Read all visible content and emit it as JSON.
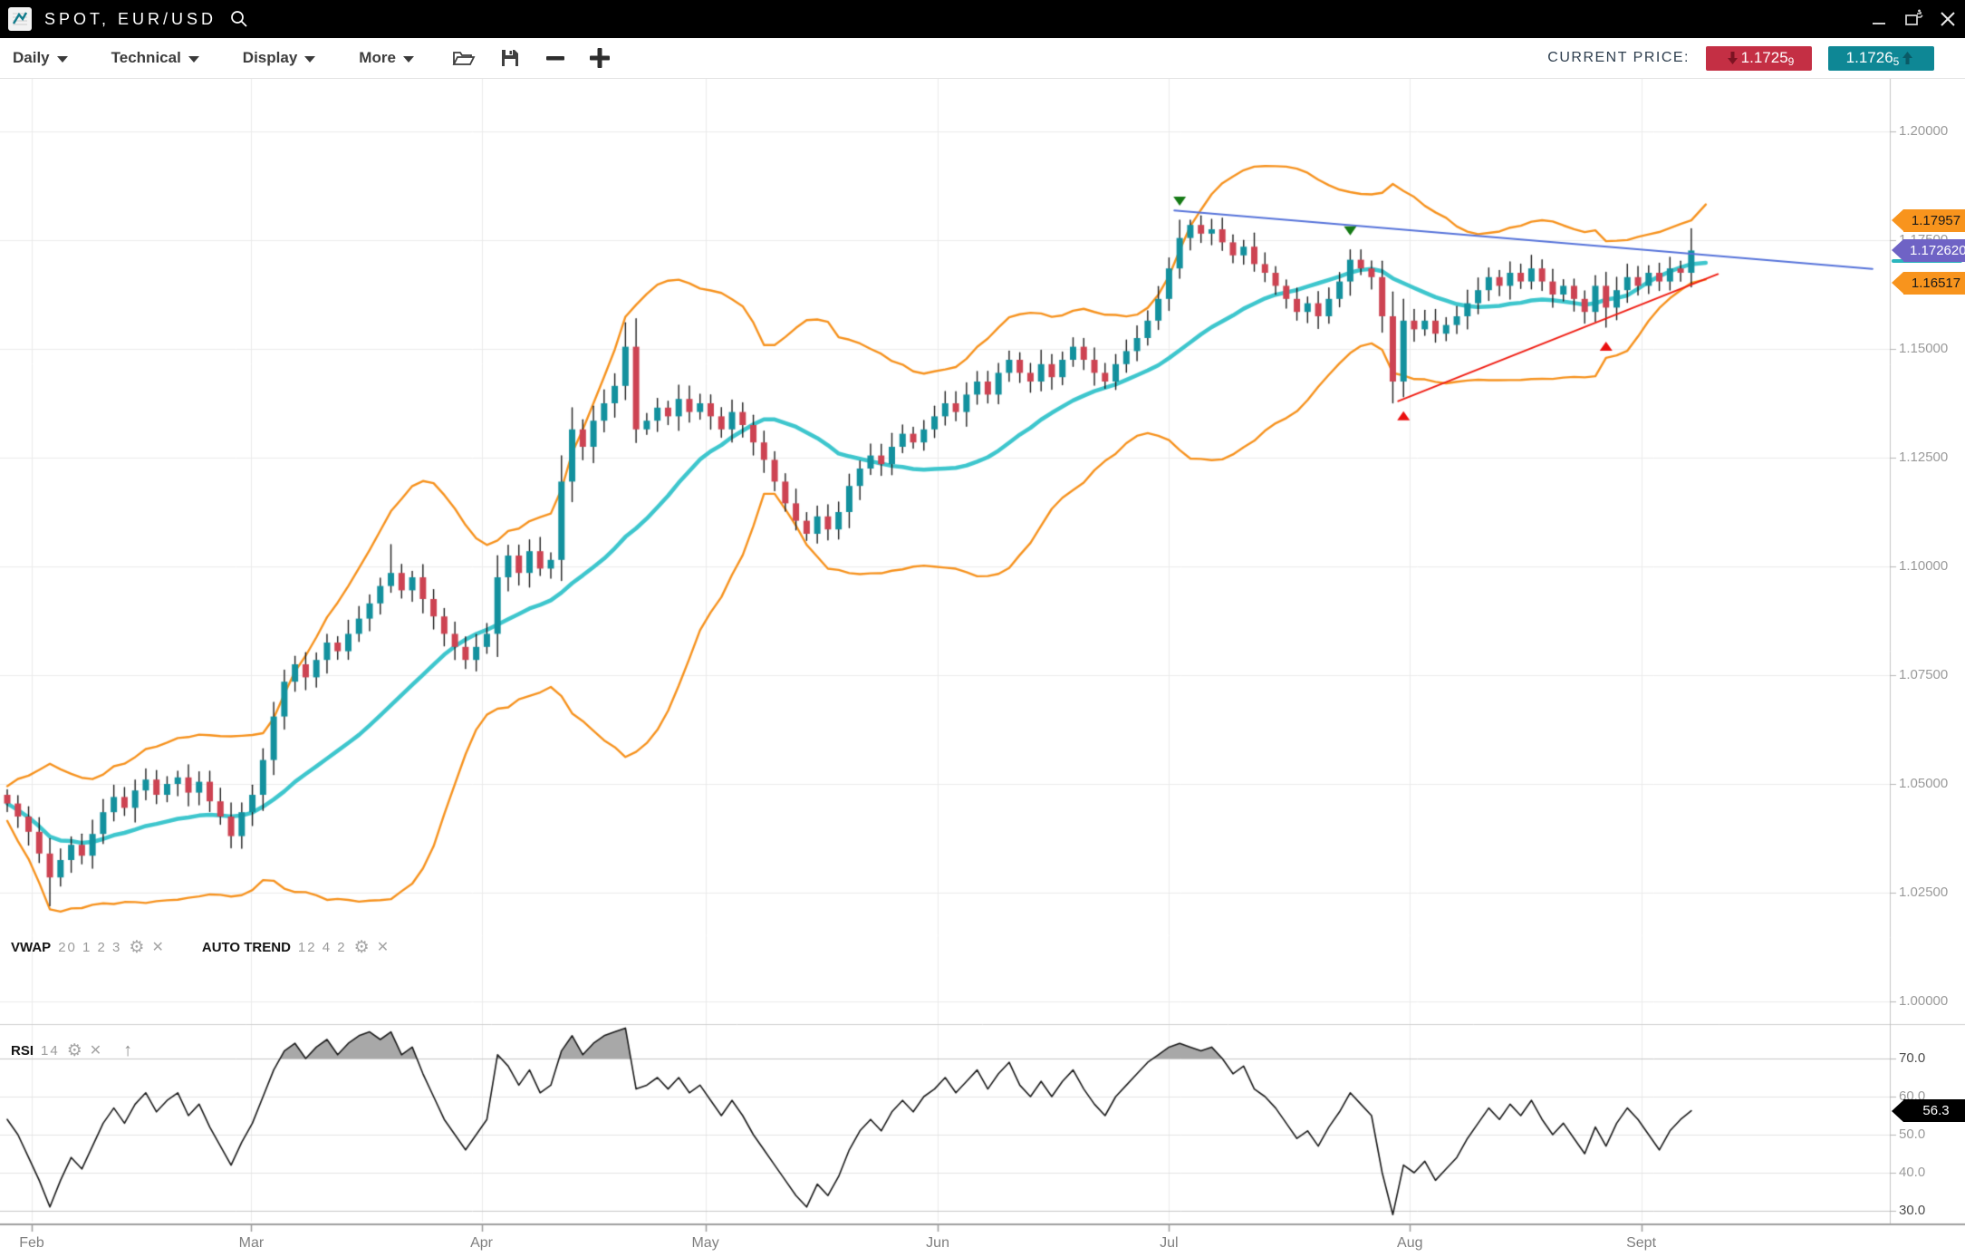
{
  "window": {
    "title": "SPOT, EUR/USD"
  },
  "toolbar": {
    "dropdowns": [
      "Daily",
      "Technical",
      "Display",
      "More"
    ],
    "current_price_label": "CURRENT PRICE:",
    "bid": {
      "main": "1.1725",
      "sub": "9",
      "color": "#c42f44"
    },
    "ask": {
      "main": "1.1726",
      "sub": "5",
      "color": "#0e8795"
    }
  },
  "price_axis": {
    "ticks": [
      {
        "label": "1.20000",
        "price": 1.2
      },
      {
        "label": "1.17500",
        "price": 1.175
      },
      {
        "label": "1.15000",
        "price": 1.15
      },
      {
        "label": "1.12500",
        "price": 1.125
      },
      {
        "label": "1.10000",
        "price": 1.1
      },
      {
        "label": "1.07500",
        "price": 1.075
      },
      {
        "label": "1.05000",
        "price": 1.05
      },
      {
        "label": "1.02500",
        "price": 1.025
      },
      {
        "label": "1.00000",
        "price": 1.0
      }
    ]
  },
  "tags": {
    "upper_band": {
      "text": "1.17957",
      "price": 1.17957,
      "bg": "#f8941d",
      "fg": "#1a1a1a"
    },
    "last_price": {
      "text": "1.172620",
      "price": 1.17262,
      "bg": "#6f63c5",
      "fg": "#ffffff"
    },
    "lower_band": {
      "text": "1.16517",
      "price": 1.16517,
      "bg": "#f8941d",
      "fg": "#1a1a1a"
    },
    "rsi_value": {
      "text": "56.3",
      "value": 56.3,
      "bg": "#000000",
      "fg": "#ffffff"
    }
  },
  "indicators": {
    "vwap": {
      "name": "VWAP",
      "params": "20 1 2 3"
    },
    "auto_trend": {
      "name": "AUTO TREND",
      "params": "12 4 2"
    },
    "rsi": {
      "name": "RSI",
      "params": "14"
    }
  },
  "rsi_axis": {
    "ticks": [
      {
        "label": "70.0",
        "value": 70,
        "strong": true
      },
      {
        "label": "60.0",
        "value": 60,
        "strong": false
      },
      {
        "label": "50.0",
        "value": 50,
        "strong": false
      },
      {
        "label": "40.0",
        "value": 40,
        "strong": false
      },
      {
        "label": "30.0",
        "value": 30,
        "strong": true
      }
    ]
  },
  "chart_data": {
    "type": "candlestick",
    "symbol": "SPOT, EUR/USD",
    "timeframe": "Daily",
    "ylim": [
      1.0,
      1.2
    ],
    "months": [
      {
        "label": "Feb",
        "day": 2.3
      },
      {
        "label": "Mar",
        "day": 22.9
      },
      {
        "label": "Apr",
        "day": 44.5
      },
      {
        "label": "May",
        "day": 65.5
      },
      {
        "label": "Jun",
        "day": 87.3
      },
      {
        "label": "Jul",
        "day": 109.0
      },
      {
        "label": "Aug",
        "day": 131.6
      },
      {
        "label": "Sept",
        "day": 153.3
      }
    ],
    "closes": [
      1.0455,
      1.0425,
      1.039,
      1.034,
      1.0285,
      1.0325,
      1.036,
      1.0335,
      1.0385,
      1.0435,
      1.047,
      1.0445,
      1.0485,
      1.051,
      1.0475,
      1.05,
      1.0515,
      1.048,
      1.0505,
      1.046,
      1.0425,
      1.038,
      1.0435,
      1.0475,
      1.0555,
      1.0655,
      1.0735,
      1.0775,
      1.0745,
      1.0785,
      1.0825,
      1.0805,
      1.0845,
      1.088,
      1.0915,
      1.0955,
      1.0985,
      1.0945,
      1.0975,
      1.0925,
      1.0885,
      1.0845,
      1.0815,
      1.0785,
      1.0815,
      1.0845,
      1.0975,
      1.1025,
      1.0985,
      1.1035,
      1.0995,
      1.1015,
      1.1195,
      1.1315,
      1.1275,
      1.1335,
      1.1375,
      1.1415,
      1.1505,
      1.1315,
      1.1335,
      1.1365,
      1.1345,
      1.1385,
      1.1355,
      1.1375,
      1.1345,
      1.1315,
      1.1355,
      1.1325,
      1.1285,
      1.1245,
      1.1195,
      1.1145,
      1.1105,
      1.1075,
      1.1115,
      1.1085,
      1.1125,
      1.1185,
      1.1225,
      1.1255,
      1.1235,
      1.1275,
      1.1305,
      1.1285,
      1.1315,
      1.1345,
      1.1375,
      1.1355,
      1.1395,
      1.1425,
      1.1395,
      1.1445,
      1.1475,
      1.1445,
      1.1425,
      1.1465,
      1.1435,
      1.1475,
      1.1505,
      1.1475,
      1.1445,
      1.1425,
      1.1465,
      1.1495,
      1.1525,
      1.1565,
      1.1615,
      1.1685,
      1.1755,
      1.1785,
      1.1765,
      1.1775,
      1.1745,
      1.1715,
      1.1735,
      1.1695,
      1.1675,
      1.1645,
      1.1615,
      1.1585,
      1.1605,
      1.1575,
      1.1615,
      1.1655,
      1.1705,
      1.1685,
      1.1665,
      1.1575,
      1.1425,
      1.1565,
      1.1545,
      1.1565,
      1.1535,
      1.1555,
      1.1575,
      1.1605,
      1.1635,
      1.1665,
      1.1645,
      1.1675,
      1.1655,
      1.1685,
      1.1655,
      1.1625,
      1.1645,
      1.1615,
      1.1585,
      1.1645,
      1.1595,
      1.1635,
      1.1665,
      1.1645,
      1.1675,
      1.1655,
      1.1685,
      1.1675,
      1.17262
    ],
    "special_wicks": {
      "4": [
        null,
        1.022
      ],
      "36": [
        1.105,
        null
      ],
      "58": [
        1.156,
        null
      ],
      "59": [
        null,
        1.1285
      ],
      "110": [
        1.1796,
        null
      ],
      "111": [
        1.1796,
        null
      ],
      "130": [
        null,
        1.1376
      ],
      "131": [
        null,
        1.139
      ],
      "150": [
        null,
        1.155
      ],
      "158": [
        1.1776,
        null
      ]
    },
    "markers": {
      "sell_signals_days": [
        110,
        126
      ],
      "buy_signals_days": [
        131,
        150
      ]
    },
    "trendlines": [
      {
        "name": "resistance",
        "color": "#5572d9",
        "from_day": 109.5,
        "from_price": 1.1818,
        "to_day": 175,
        "to_price": 1.1684
      },
      {
        "name": "support",
        "color": "#ef1c12",
        "from_day": 130.5,
        "from_price": 1.138,
        "to_day": 160.5,
        "to_price": 1.1672
      }
    ],
    "vwap_window": 20,
    "band_mult": 2.1,
    "band_end_targets": {
      "upper": 1.17957,
      "lower": 1.16517,
      "mid": 1.1695
    },
    "last_close": 1.17262,
    "rsi_period": 14,
    "rsi_overbought": 70,
    "rsi_oversold": 30,
    "rsi": [
      54,
      50,
      44,
      38,
      31,
      38,
      44,
      41,
      47,
      53,
      57,
      53,
      58,
      61,
      56,
      59,
      61,
      55,
      58,
      52,
      47,
      42,
      48,
      53,
      60,
      67,
      72,
      74,
      70,
      73,
      75,
      71,
      74,
      76,
      77,
      75,
      77,
      71,
      73,
      66,
      60,
      54,
      50,
      46,
      50,
      54,
      71,
      68,
      63,
      67,
      61,
      63,
      72,
      76,
      71,
      74,
      76,
      77,
      78,
      62,
      63,
      65,
      62,
      65,
      61,
      63,
      59,
      55,
      59,
      55,
      50,
      46,
      42,
      38,
      34,
      31,
      37,
      34,
      39,
      46,
      51,
      54,
      51,
      56,
      59,
      56,
      60,
      62,
      65,
      61,
      64,
      67,
      62,
      66,
      69,
      63,
      60,
      64,
      60,
      64,
      67,
      62,
      58,
      55,
      60,
      63,
      66,
      69,
      71,
      73,
      74,
      73,
      72,
      73,
      70,
      66,
      68,
      62,
      60,
      57,
      53,
      49,
      51,
      47,
      52,
      56,
      61,
      58,
      55,
      40,
      29,
      42,
      40,
      43,
      38,
      41,
      44,
      49,
      53,
      57,
      54,
      58,
      55,
      59,
      54,
      50,
      53,
      49,
      45,
      52,
      47,
      53,
      57,
      54,
      50,
      46,
      51,
      54,
      56.3
    ],
    "colors": {
      "bull": "#13919e",
      "bear": "#cd4352",
      "wick": "#1d1d1d",
      "band": "#f6921e",
      "vwap": "#3ec6cd",
      "sell_marker": "#157a15",
      "buy_marker": "#ea0f0f",
      "rsi_line": "#1a1a1a",
      "rsi_fill": "#a8a8a8",
      "grid": "#ebebeb",
      "axis": "#c4c4c4"
    }
  }
}
